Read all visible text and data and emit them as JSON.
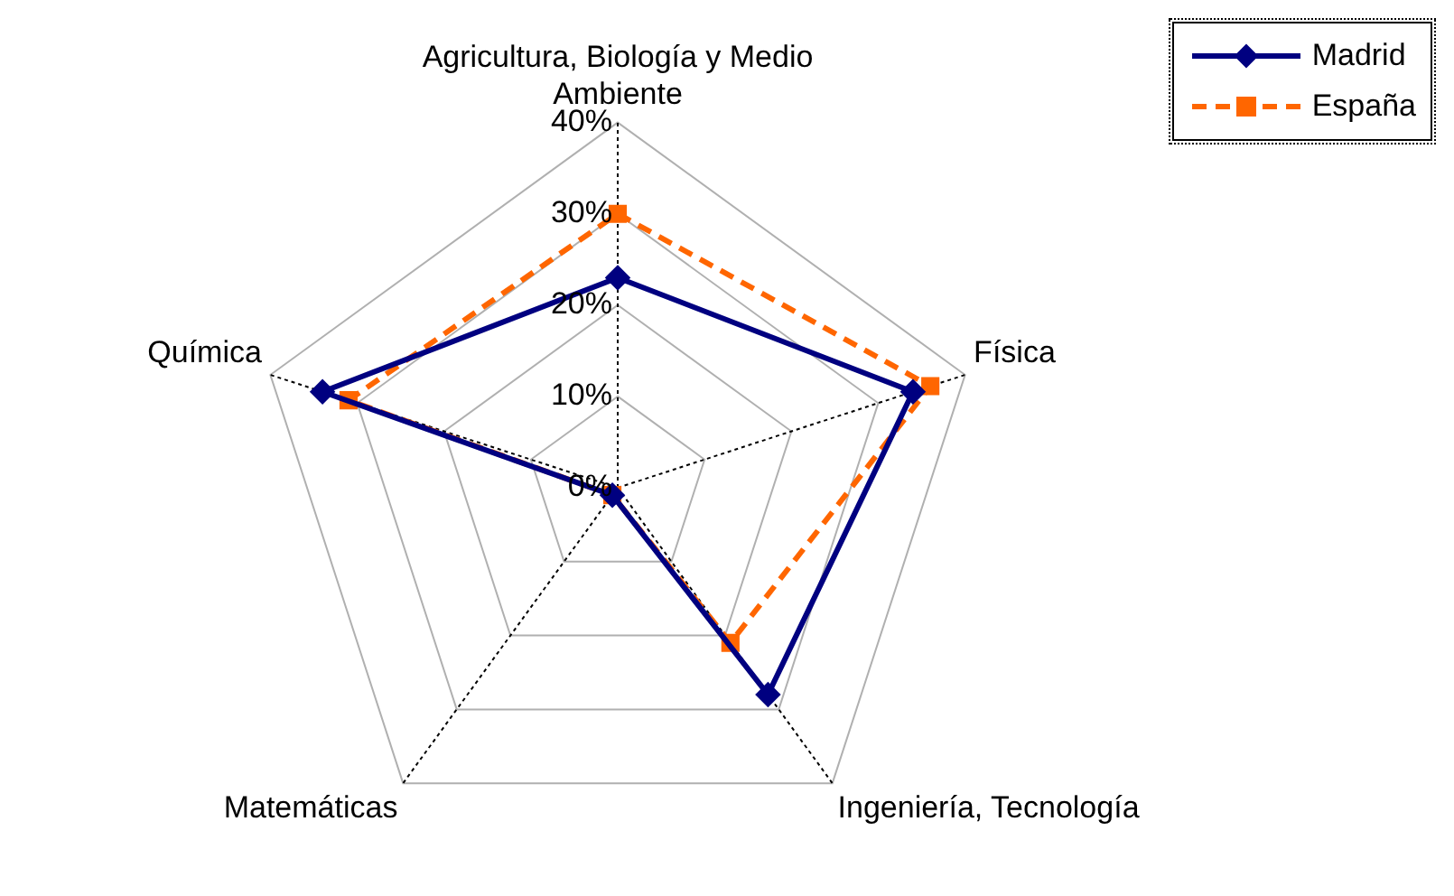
{
  "chart_data": {
    "type": "radar",
    "categories": [
      "Agricultura, Biología y Medio Ambiente",
      "Física",
      "Ingeniería, Tecnología",
      "Matemáticas",
      "Química"
    ],
    "series": [
      {
        "name": "Madrid",
        "color": "#000080",
        "values": [
          23,
          34,
          28,
          1,
          34
        ],
        "marker": "diamond",
        "line_style": "solid"
      },
      {
        "name": "España",
        "color": "#ff6600",
        "values": [
          30,
          36,
          21,
          1,
          31
        ],
        "marker": "square",
        "line_style": "dashed"
      }
    ],
    "ylim": [
      0,
      40
    ],
    "yticks": [
      {
        "value": 0,
        "label": "0%"
      },
      {
        "value": 10,
        "label": "10%"
      },
      {
        "value": 20,
        "label": "20%"
      },
      {
        "value": 30,
        "label": "30%"
      },
      {
        "value": 40,
        "label": "40%"
      }
    ],
    "grid": true,
    "legend": "top right"
  }
}
